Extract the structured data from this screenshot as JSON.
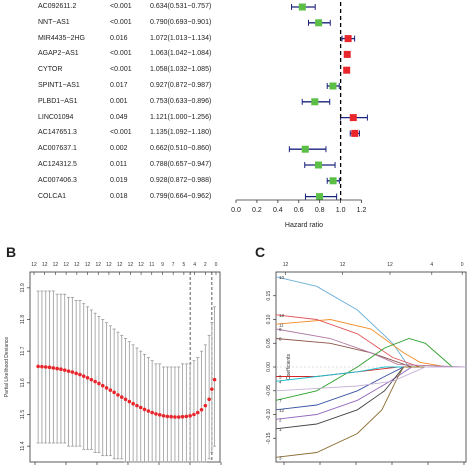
{
  "chart_data": [
    {
      "type": "forest",
      "xlabel": "Hazard ratio",
      "xticks": [
        "0.0",
        "0.2",
        "0.4",
        "0.6",
        "0.8",
        "1.0",
        "1.2"
      ],
      "xlim": [
        0.0,
        1.3
      ],
      "reference_line": 1.0,
      "colors": {
        "protective": "#5bbf45",
        "risk": "#e8262b",
        "ci": "#1a237e"
      },
      "rows": [
        {
          "gene": "AC092611.2",
          "p": "<0.001",
          "hr_text": "0.634(0.531−0.757)",
          "hr": 0.634,
          "lo": 0.531,
          "hi": 0.757
        },
        {
          "gene": "NNT−AS1",
          "p": "<0.001",
          "hr_text": "0.790(0.693−0.901)",
          "hr": 0.79,
          "lo": 0.693,
          "hi": 0.901
        },
        {
          "gene": "MIR4435−2HG",
          "p": "0.016",
          "hr_text": "1.072(1.013−1.134)",
          "hr": 1.072,
          "lo": 1.013,
          "hi": 1.134
        },
        {
          "gene": "AGAP2−AS1",
          "p": "<0.001",
          "hr_text": "1.063(1.042−1.084)",
          "hr": 1.063,
          "lo": 1.042,
          "hi": 1.084
        },
        {
          "gene": "CYTOR",
          "p": "<0.001",
          "hr_text": "1.058(1.032−1.085)",
          "hr": 1.058,
          "lo": 1.032,
          "hi": 1.085
        },
        {
          "gene": "SPINT1−AS1",
          "p": "0.017",
          "hr_text": "0.927(0.872−0.987)",
          "hr": 0.927,
          "lo": 0.872,
          "hi": 0.987
        },
        {
          "gene": "PLBD1−AS1",
          "p": "0.001",
          "hr_text": "0.753(0.633−0.896)",
          "hr": 0.753,
          "lo": 0.633,
          "hi": 0.896
        },
        {
          "gene": "LINC01094",
          "p": "0.049",
          "hr_text": "1.121(1.000−1.256)",
          "hr": 1.121,
          "lo": 1.0,
          "hi": 1.256
        },
        {
          "gene": "AC147651.3",
          "p": "<0.001",
          "hr_text": "1.135(1.092−1.180)",
          "hr": 1.135,
          "lo": 1.092,
          "hi": 1.18
        },
        {
          "gene": "AC007637.1",
          "p": "0.002",
          "hr_text": "0.662(0.510−0.860)",
          "hr": 0.662,
          "lo": 0.51,
          "hi": 0.86
        },
        {
          "gene": "AC124312.5",
          "p": "0.011",
          "hr_text": "0.788(0.657−0.947)",
          "hr": 0.788,
          "lo": 0.657,
          "hi": 0.947
        },
        {
          "gene": "AC007406.3",
          "p": "0.019",
          "hr_text": "0.928(0.872−0.988)",
          "hr": 0.928,
          "lo": 0.872,
          "hi": 0.988
        },
        {
          "gene": "COLCA1",
          "p": "0.018",
          "hr_text": "0.799(0.664−0.962)",
          "hr": 0.799,
          "lo": 0.664,
          "hi": 0.962
        }
      ]
    },
    {
      "type": "line",
      "panel": "B",
      "ylabel": "Partial Likelihood Deviance",
      "yticks": [
        "11.9",
        "11.8",
        "11.7",
        "11.6",
        "11.5",
        "11.4"
      ],
      "ylim": [
        11.35,
        11.95
      ],
      "xlim": [
        -8.5,
        -1.5
      ],
      "top_ticks": [
        "12",
        "12",
        "12",
        "12",
        "12",
        "12",
        "12",
        "12",
        "12",
        "12",
        "12",
        "12",
        "12",
        "12",
        "12",
        "12",
        "12",
        "12",
        "12",
        "12",
        "12",
        "12",
        "12",
        "12",
        "12",
        "12",
        "12",
        "12",
        "12",
        "12",
        "12",
        "12",
        "12",
        "12",
        "12",
        "12",
        "12",
        "12",
        "12",
        "12",
        "12",
        "12",
        "12",
        "12",
        "12",
        "12",
        "12",
        "12",
        "12",
        "12",
        "11",
        "10",
        "9",
        "7",
        "5",
        "4",
        "2",
        "0"
      ],
      "top_tick_values": [
        "12",
        "12",
        "12",
        "12",
        "12",
        "12",
        "12",
        "12",
        "12",
        "12",
        "12",
        "11",
        "9",
        "7",
        "5",
        "4",
        "2",
        "0"
      ],
      "vlines": [
        -2.6,
        -1.8
      ],
      "point_color": "#e8262b",
      "points": [
        {
          "x": -8.2,
          "y": 11.652,
          "lo": 11.41,
          "hi": 11.89
        },
        {
          "x": -8.06,
          "y": 11.651,
          "lo": 11.41,
          "hi": 11.89
        },
        {
          "x": -7.92,
          "y": 11.65,
          "lo": 11.41,
          "hi": 11.89
        },
        {
          "x": -7.78,
          "y": 11.649,
          "lo": 11.41,
          "hi": 11.89
        },
        {
          "x": -7.64,
          "y": 11.647,
          "lo": 11.41,
          "hi": 11.89
        },
        {
          "x": -7.5,
          "y": 11.645,
          "lo": 11.41,
          "hi": 11.88
        },
        {
          "x": -7.36,
          "y": 11.643,
          "lo": 11.41,
          "hi": 11.88
        },
        {
          "x": -7.22,
          "y": 11.64,
          "lo": 11.41,
          "hi": 11.88
        },
        {
          "x": -7.08,
          "y": 11.637,
          "lo": 11.4,
          "hi": 11.87
        },
        {
          "x": -6.94,
          "y": 11.634,
          "lo": 11.4,
          "hi": 11.87
        },
        {
          "x": -6.8,
          "y": 11.63,
          "lo": 11.4,
          "hi": 11.86
        },
        {
          "x": -6.66,
          "y": 11.626,
          "lo": 11.4,
          "hi": 11.86
        },
        {
          "x": -6.52,
          "y": 11.621,
          "lo": 11.39,
          "hi": 11.85
        },
        {
          "x": -6.38,
          "y": 11.616,
          "lo": 11.39,
          "hi": 11.84
        },
        {
          "x": -6.24,
          "y": 11.61,
          "lo": 11.39,
          "hi": 11.83
        },
        {
          "x": -6.1,
          "y": 11.604,
          "lo": 11.38,
          "hi": 11.82
        },
        {
          "x": -5.96,
          "y": 11.598,
          "lo": 11.38,
          "hi": 11.81
        },
        {
          "x": -5.82,
          "y": 11.591,
          "lo": 11.37,
          "hi": 11.8
        },
        {
          "x": -5.68,
          "y": 11.584,
          "lo": 11.37,
          "hi": 11.79
        },
        {
          "x": -5.54,
          "y": 11.577,
          "lo": 11.37,
          "hi": 11.78
        },
        {
          "x": -5.4,
          "y": 11.57,
          "lo": 11.36,
          "hi": 11.77
        },
        {
          "x": -5.26,
          "y": 11.562,
          "lo": 11.36,
          "hi": 11.76
        },
        {
          "x": -5.12,
          "y": 11.555,
          "lo": 11.36,
          "hi": 11.75
        },
        {
          "x": -4.98,
          "y": 11.548,
          "lo": 11.35,
          "hi": 11.74
        },
        {
          "x": -4.84,
          "y": 11.541,
          "lo": 11.35,
          "hi": 11.73
        },
        {
          "x": -4.7,
          "y": 11.534,
          "lo": 11.35,
          "hi": 11.72
        },
        {
          "x": -4.56,
          "y": 11.528,
          "lo": 11.35,
          "hi": 11.71
        },
        {
          "x": -4.42,
          "y": 11.522,
          "lo": 11.35,
          "hi": 11.7
        },
        {
          "x": -4.28,
          "y": 11.516,
          "lo": 11.35,
          "hi": 11.69
        },
        {
          "x": -4.14,
          "y": 11.511,
          "lo": 11.35,
          "hi": 11.68
        },
        {
          "x": -4.0,
          "y": 11.506,
          "lo": 11.35,
          "hi": 11.67
        },
        {
          "x": -3.86,
          "y": 11.502,
          "lo": 11.35,
          "hi": 11.66
        },
        {
          "x": -3.72,
          "y": 11.499,
          "lo": 11.35,
          "hi": 11.66
        },
        {
          "x": -3.58,
          "y": 11.496,
          "lo": 11.35,
          "hi": 11.65
        },
        {
          "x": -3.44,
          "y": 11.494,
          "lo": 11.35,
          "hi": 11.65
        },
        {
          "x": -3.3,
          "y": 11.493,
          "lo": 11.35,
          "hi": 11.65
        },
        {
          "x": -3.16,
          "y": 11.492,
          "lo": 11.35,
          "hi": 11.65
        },
        {
          "x": -3.02,
          "y": 11.492,
          "lo": 11.35,
          "hi": 11.65
        },
        {
          "x": -2.88,
          "y": 11.493,
          "lo": 11.35,
          "hi": 11.66
        },
        {
          "x": -2.74,
          "y": 11.494,
          "lo": 11.35,
          "hi": 11.66
        },
        {
          "x": -2.6,
          "y": 11.496,
          "lo": 11.35,
          "hi": 11.66
        },
        {
          "x": -2.46,
          "y": 11.5,
          "lo": 11.35,
          "hi": 11.67
        },
        {
          "x": -2.32,
          "y": 11.506,
          "lo": 11.35,
          "hi": 11.68
        },
        {
          "x": -2.18,
          "y": 11.515,
          "lo": 11.35,
          "hi": 11.7
        },
        {
          "x": -2.04,
          "y": 11.528,
          "lo": 11.35,
          "hi": 11.72
        },
        {
          "x": -1.9,
          "y": 11.548,
          "lo": 11.36,
          "hi": 11.75
        },
        {
          "x": -1.8,
          "y": 11.58,
          "lo": 11.38,
          "hi": 11.79
        },
        {
          "x": -1.7,
          "y": 11.61,
          "lo": 11.4,
          "hi": 11.84
        }
      ]
    },
    {
      "type": "line",
      "panel": "C",
      "ylabel": "Coefficients",
      "yticks": [
        "0.15",
        "0.10",
        "0.05",
        "0.00",
        "-0.05",
        "-0.10",
        "-0.15"
      ],
      "ylim": [
        -0.2,
        0.2
      ],
      "top_tick_values": [
        "12",
        "12",
        "12",
        "4",
        "0"
      ],
      "left_labels": [
        "10",
        "13",
        "11",
        "8",
        "9",
        "5",
        "4",
        "7",
        "12",
        "2",
        "1",
        "3"
      ],
      "series": [
        {
          "color": "#6baed6",
          "points": [
            [
              -8.5,
              0.19
            ],
            [
              -7,
              0.17
            ],
            [
              -5.5,
              0.12
            ],
            [
              -4.2,
              0.05
            ],
            [
              -3.6,
              0.0
            ],
            [
              -1.5,
              0.0
            ]
          ]
        },
        {
          "color": "#f28e2b",
          "points": [
            [
              -8.5,
              0.09
            ],
            [
              -6.5,
              0.1
            ],
            [
              -5,
              0.08
            ],
            [
              -3.8,
              0.03
            ],
            [
              -3.2,
              0.01
            ],
            [
              -2.2,
              0.0
            ],
            [
              -1.5,
              0.0
            ]
          ]
        },
        {
          "color": "#e15759",
          "points": [
            [
              -8.5,
              0.11
            ],
            [
              -7,
              0.1
            ],
            [
              -5.5,
              0.07
            ],
            [
              -4.2,
              0.02
            ],
            [
              -3.2,
              0.0
            ],
            [
              -1.5,
              0.0
            ]
          ]
        },
        {
          "color": "#8c564b",
          "points": [
            [
              -8.5,
              0.06
            ],
            [
              -6.5,
              0.05
            ],
            [
              -5,
              0.03
            ],
            [
              -3.5,
              0.0
            ],
            [
              -1.5,
              0.0
            ]
          ]
        },
        {
          "color": "#b07aa1",
          "points": [
            [
              -8.5,
              0.08
            ],
            [
              -6.5,
              0.06
            ],
            [
              -5,
              0.03
            ],
            [
              -4,
              0.005
            ],
            [
              -1.5,
              0.0
            ]
          ]
        },
        {
          "color": "#2ca02c",
          "points": [
            [
              -8.5,
              -0.07
            ],
            [
              -7,
              -0.05
            ],
            [
              -5.5,
              0.0
            ],
            [
              -4.5,
              0.04
            ],
            [
              -3.6,
              0.06
            ],
            [
              -3,
              0.05
            ],
            [
              -2.4,
              0.02
            ],
            [
              -2,
              0.0
            ],
            [
              -1.5,
              0.0
            ]
          ]
        },
        {
          "color": "#d62728",
          "points": [
            [
              -8.5,
              -0.02
            ],
            [
              -7,
              -0.02
            ],
            [
              -5.5,
              -0.01
            ],
            [
              -4,
              0.0
            ],
            [
              -1.5,
              0.0
            ]
          ]
        },
        {
          "color": "#17becf",
          "points": [
            [
              -8.5,
              -0.03
            ],
            [
              -7,
              -0.02
            ],
            [
              -5.5,
              -0.01
            ],
            [
              -4.5,
              0.0
            ],
            [
              -1.5,
              0.0
            ]
          ]
        },
        {
          "color": "#9467bd",
          "points": [
            [
              -8.5,
              -0.11
            ],
            [
              -7,
              -0.1
            ],
            [
              -5.5,
              -0.07
            ],
            [
              -4.3,
              -0.03
            ],
            [
              -3.5,
              0.0
            ],
            [
              -1.5,
              0.0
            ]
          ]
        },
        {
          "color": "#444444",
          "points": [
            [
              -8.5,
              -0.13
            ],
            [
              -7,
              -0.12
            ],
            [
              -5.5,
              -0.09
            ],
            [
              -4.5,
              -0.05
            ],
            [
              -3.8,
              0.0
            ],
            [
              -1.5,
              0.0
            ]
          ]
        },
        {
          "color": "#3a53a4",
          "points": [
            [
              -8.5,
              -0.09
            ],
            [
              -7,
              -0.08
            ],
            [
              -5.5,
              -0.05
            ],
            [
              -4.5,
              -0.02
            ],
            [
              -3.8,
              0.0
            ],
            [
              -1.5,
              0.0
            ]
          ]
        },
        {
          "color": "#8c6d31",
          "points": [
            [
              -8.5,
              -0.19
            ],
            [
              -7,
              -0.18
            ],
            [
              -5.5,
              -0.14
            ],
            [
              -4.6,
              -0.09
            ],
            [
              -4.0,
              -0.02
            ],
            [
              -3.8,
              0.0
            ],
            [
              -1.5,
              0.0
            ]
          ]
        },
        {
          "color": "#c7b3d9",
          "points": [
            [
              -8.5,
              -0.05
            ],
            [
              -7,
              -0.045
            ],
            [
              -5.5,
              -0.04
            ],
            [
              -4.2,
              -0.03
            ],
            [
              -3.4,
              -0.01
            ],
            [
              -3,
              0.0
            ],
            [
              -1.5,
              0.0
            ]
          ]
        }
      ],
      "vlines": [
        -4.2,
        -3.6
      ]
    }
  ],
  "panel_labels": {
    "b": "B",
    "c": "C"
  }
}
